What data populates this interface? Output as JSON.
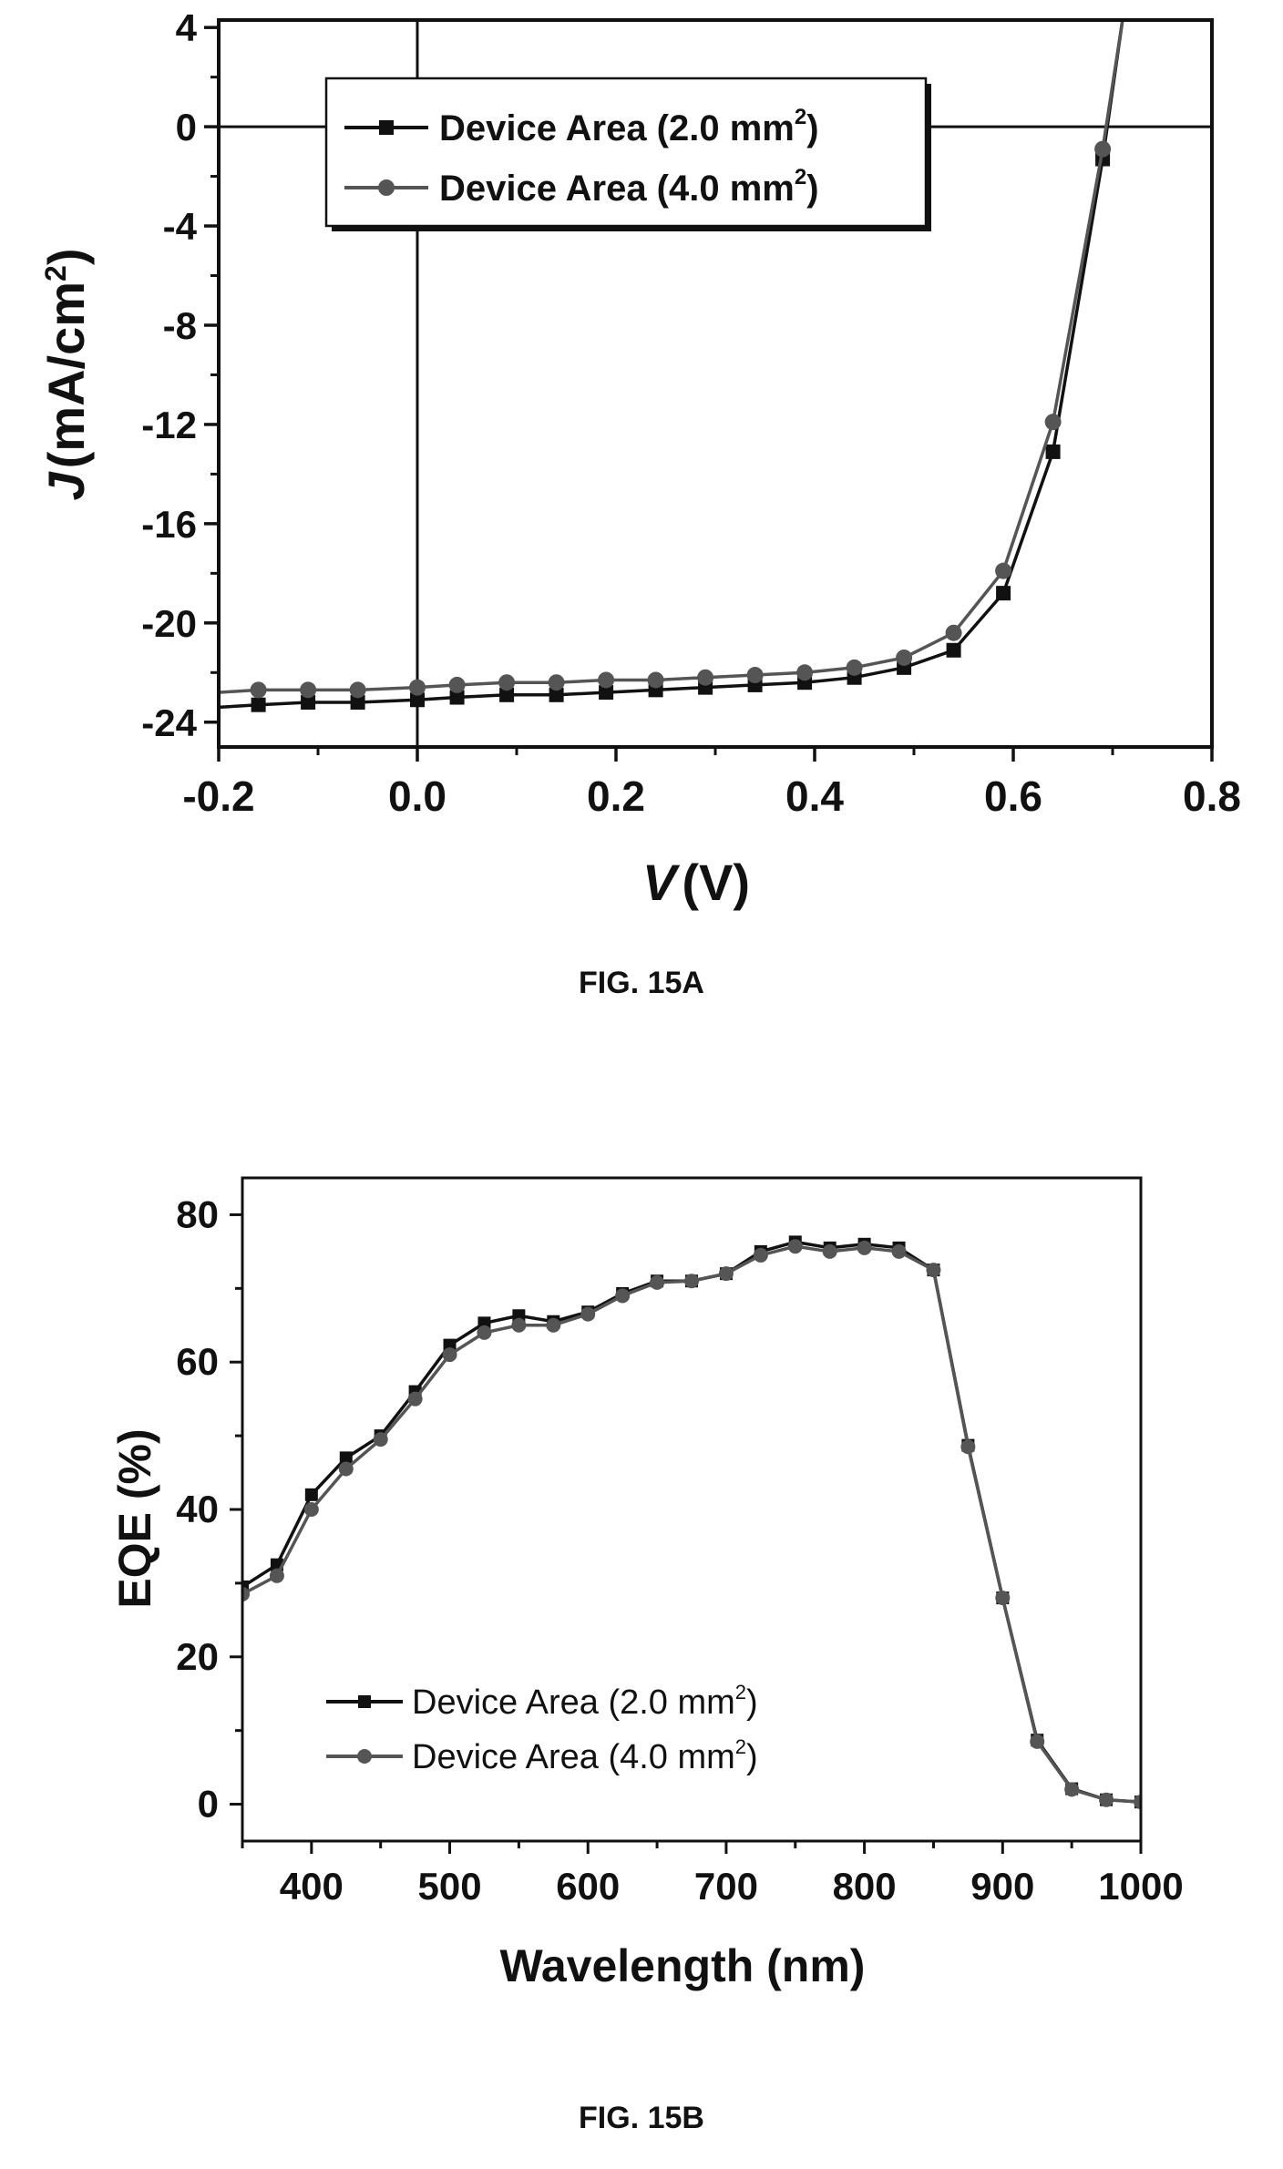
{
  "figure_a": {
    "caption": "FIG. 15A",
    "chart_data": {
      "type": "line",
      "xlabel": {
        "italic": "V",
        "rest": "(V)"
      },
      "ylabel": {
        "italic": "J",
        "rest": "(mA/cm",
        "sup": "2",
        "close": ")"
      },
      "xlim": [
        -0.2,
        0.8
      ],
      "ylim": [
        -25,
        4.3
      ],
      "xticks": [
        -0.2,
        0.0,
        0.2,
        0.4,
        0.6,
        0.8
      ],
      "xtick_labels": [
        "-0.2",
        "0.0",
        "0.2",
        "0.4",
        "0.6",
        "0.8"
      ],
      "yticks": [
        4,
        0,
        -4,
        -8,
        -12,
        -16,
        -20,
        -24
      ],
      "ytick_labels": [
        "4",
        "0",
        "-4",
        "-8",
        "-12",
        "-16",
        "-20",
        "-24"
      ],
      "reference_lines": {
        "x": 0,
        "y": 0
      },
      "legend_position": "top-left",
      "series": [
        {
          "name_main": "Device Area (2.0 mm",
          "name_sup": "2",
          "name_close": ")",
          "marker": "square",
          "color": "#111111",
          "x": [
            -0.2,
            -0.16,
            -0.11,
            -0.06,
            0.0,
            0.04,
            0.09,
            0.14,
            0.19,
            0.24,
            0.29,
            0.34,
            0.39,
            0.44,
            0.49,
            0.54,
            0.59,
            0.64,
            0.69,
            0.71
          ],
          "y": [
            -23.4,
            -23.3,
            -23.2,
            -23.2,
            -23.1,
            -23.0,
            -22.9,
            -22.9,
            -22.8,
            -22.7,
            -22.6,
            -22.5,
            -22.4,
            -22.2,
            -21.8,
            -21.1,
            -18.8,
            -13.1,
            -1.3,
            4.3
          ]
        },
        {
          "name_main": "Device Area (4.0 mm",
          "name_sup": "2",
          "name_close": ")",
          "marker": "circle",
          "color": "#555555",
          "x": [
            -0.2,
            -0.16,
            -0.11,
            -0.06,
            0.0,
            0.04,
            0.09,
            0.14,
            0.19,
            0.24,
            0.29,
            0.34,
            0.39,
            0.44,
            0.49,
            0.54,
            0.59,
            0.64,
            0.69,
            0.71
          ],
          "y": [
            -22.8,
            -22.7,
            -22.7,
            -22.7,
            -22.6,
            -22.5,
            -22.4,
            -22.4,
            -22.3,
            -22.3,
            -22.2,
            -22.1,
            -22.0,
            -21.8,
            -21.4,
            -20.4,
            -17.9,
            -11.9,
            -0.9,
            4.3
          ]
        }
      ]
    }
  },
  "figure_b": {
    "caption": "FIG. 15B",
    "chart_data": {
      "type": "line",
      "xlabel": "Wavelength (nm)",
      "ylabel": "EQE (%)",
      "xlim": [
        350,
        1000
      ],
      "ylim": [
        -5,
        85
      ],
      "xticks": [
        400,
        500,
        600,
        700,
        800,
        900,
        1000
      ],
      "xtick_labels": [
        "400",
        "500",
        "600",
        "700",
        "800",
        "900",
        "1000"
      ],
      "yticks": [
        0,
        20,
        40,
        60,
        80
      ],
      "ytick_labels": [
        "0",
        "20",
        "40",
        "60",
        "80"
      ],
      "legend_position": "bottom-left",
      "series": [
        {
          "name_main": "Device Area (2.0 mm",
          "name_sup": "2",
          "name_close": ")",
          "marker": "square",
          "color": "#111111",
          "x": [
            350,
            375,
            400,
            425,
            450,
            475,
            500,
            525,
            550,
            575,
            600,
            625,
            650,
            675,
            700,
            725,
            750,
            775,
            800,
            825,
            850,
            875,
            900,
            925,
            950,
            975,
            1000
          ],
          "y": [
            29.5,
            32.5,
            42,
            47,
            50,
            56,
            62.3,
            65.3,
            66.3,
            65.5,
            66.8,
            69.3,
            71,
            71,
            72,
            75,
            76.3,
            75.5,
            76,
            75.5,
            72.5,
            48.7,
            28,
            8.7,
            2.1,
            0.6,
            0.3
          ]
        },
        {
          "name_main": "Device Area (4.0 mm",
          "name_sup": "2",
          "name_close": ")",
          "marker": "circle",
          "color": "#555555",
          "x": [
            350,
            375,
            400,
            425,
            450,
            475,
            500,
            525,
            550,
            575,
            600,
            625,
            650,
            675,
            700,
            725,
            750,
            775,
            800,
            825,
            850,
            875,
            900,
            925,
            950,
            975,
            1000
          ],
          "y": [
            28.5,
            31,
            40,
            45.5,
            49.5,
            55,
            61,
            64,
            65,
            65,
            66.5,
            69,
            70.8,
            71,
            72,
            74.5,
            75.7,
            75,
            75.5,
            75,
            72.5,
            48.5,
            28,
            8.5,
            2,
            0.6,
            0.3
          ]
        }
      ]
    }
  }
}
